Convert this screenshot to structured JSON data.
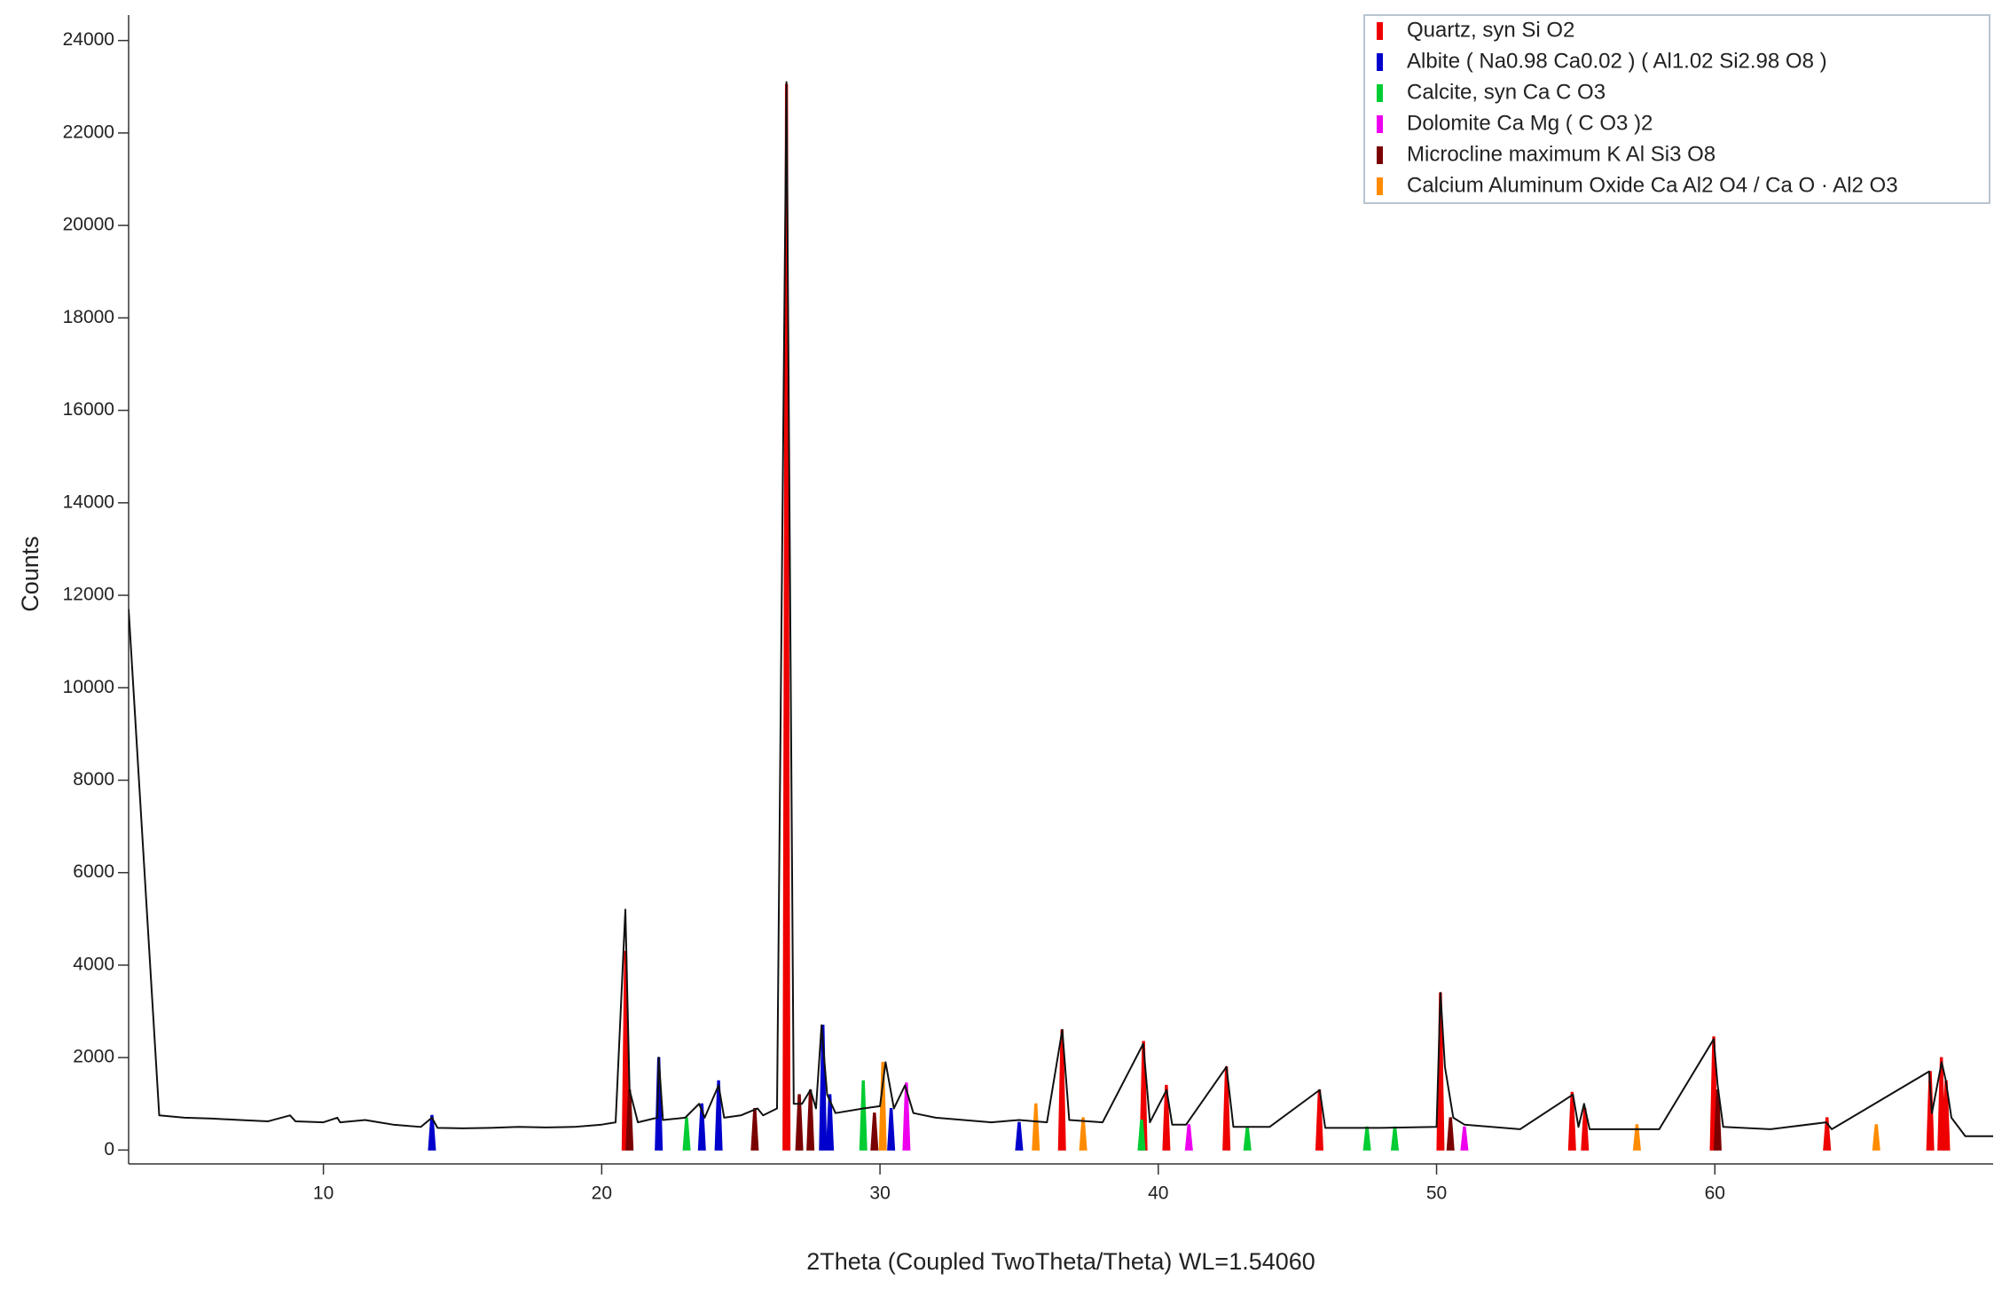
{
  "chart_data": {
    "type": "line",
    "x_label": "2Theta (Coupled TwoTheta/Theta) WL=1.54060",
    "y_label": "Counts",
    "xlim": [
      3,
      70
    ],
    "ylim": [
      -300,
      24550
    ],
    "xticks": [
      10,
      20,
      30,
      40,
      50,
      60
    ],
    "yticks": [
      0,
      2000,
      4000,
      6000,
      8000,
      10000,
      12000,
      14000,
      16000,
      18000,
      20000,
      22000,
      24000
    ],
    "color": "#111111",
    "x": [
      3.0,
      4.1,
      5,
      6,
      7,
      8,
      8.8,
      9,
      10,
      10.5,
      10.6,
      11.5,
      12,
      12.5,
      13.5,
      13.9,
      14.1,
      15,
      16,
      17,
      18,
      19,
      20,
      20.5,
      20.85,
      21,
      21.3,
      22,
      22.05,
      22.2,
      23,
      23.5,
      23.7,
      24.2,
      24.4,
      25,
      25.6,
      25.8,
      26.3,
      26.64,
      26.9,
      27.2,
      27.5,
      27.7,
      27.9,
      28.1,
      28.4,
      29.4,
      30,
      30.2,
      30.5,
      30.9,
      31.2,
      32,
      33,
      34,
      35,
      36,
      36.55,
      36.8,
      38,
      39.46,
      39.7,
      40.3,
      40.5,
      41,
      42.45,
      42.7,
      44,
      45.8,
      46,
      48,
      50,
      50.14,
      50.3,
      50.6,
      51,
      53,
      54.9,
      55.1,
      55.3,
      55.5,
      58,
      59.96,
      60.1,
      60.3,
      62,
      64,
      64.2,
      67.7,
      67.8,
      68.15,
      68.3,
      68.5,
      69,
      70
    ],
    "values": [
      11700,
      750,
      700,
      680,
      650,
      620,
      750,
      620,
      600,
      700,
      600,
      650,
      600,
      550,
      500,
      700,
      480,
      470,
      480,
      500,
      490,
      500,
      550,
      600,
      5200,
      1300,
      600,
      700,
      2000,
      650,
      700,
      1000,
      700,
      1400,
      700,
      750,
      900,
      750,
      900,
      23100,
      1000,
      1000,
      1300,
      900,
      2700,
      1200,
      800,
      900,
      950,
      1900,
      900,
      1400,
      800,
      700,
      650,
      600,
      650,
      600,
      2600,
      650,
      600,
      2300,
      600,
      1300,
      550,
      550,
      1800,
      500,
      500,
      1300,
      480,
      480,
      500,
      3400,
      1800,
      700,
      550,
      450,
      1200,
      500,
      1000,
      450,
      450,
      2400,
      1400,
      500,
      450,
      600,
      450,
      1700,
      800,
      1900,
      1500,
      700,
      300,
      300
    ],
    "phases": [
      {
        "name": "Quartz, syn  Si O2",
        "color": "#ee0000",
        "x": [
          20.86,
          26.64,
          36.54,
          39.47,
          40.29,
          42.45,
          45.79,
          50.14,
          54.87,
          55.33,
          59.96,
          64.03,
          67.74,
          68.14,
          68.31
        ],
        "values": [
          4300,
          23050,
          2600,
          2350,
          1400,
          1800,
          1300,
          3400,
          1250,
          900,
          2450,
          700,
          1700,
          2000,
          1500
        ]
      },
      {
        "name": "Albite  ( Na0.98 Ca0.02 ) ( Al1.02 Si2.98 O8 )",
        "color": "#0000cc",
        "x": [
          13.9,
          22.05,
          23.6,
          24.2,
          27.95,
          28.2,
          30.4,
          35
        ],
        "values": [
          750,
          2000,
          1000,
          1500,
          2700,
          1200,
          900,
          600
        ]
      },
      {
        "name": "Calcite, syn  Ca C O3",
        "color": "#00cc33",
        "x": [
          23.05,
          29.4,
          39.4,
          43.2,
          47.5,
          48.5
        ],
        "values": [
          700,
          1500,
          650,
          500,
          500,
          500
        ]
      },
      {
        "name": "Dolomite  Ca Mg ( C O3 )2",
        "color": "#ee00ee",
        "x": [
          30.95,
          41.1,
          51
        ],
        "values": [
          1450,
          550,
          500
        ]
      },
      {
        "name": "Microcline maximum  K Al Si3 O8",
        "color": "#7a0000",
        "x": [
          21,
          25.5,
          27.1,
          27.5,
          29.8,
          50.5,
          60.1
        ],
        "values": [
          1300,
          900,
          1200,
          1300,
          800,
          700,
          1300
        ]
      },
      {
        "name": "Calcium Aluminum Oxide  Ca Al2 O4 / Ca O · Al2 O3",
        "color": "#ff8c00",
        "x": [
          30.1,
          35.6,
          37.3,
          57.2,
          65.8
        ],
        "values": [
          1900,
          1000,
          700,
          550,
          550
        ]
      }
    ]
  }
}
